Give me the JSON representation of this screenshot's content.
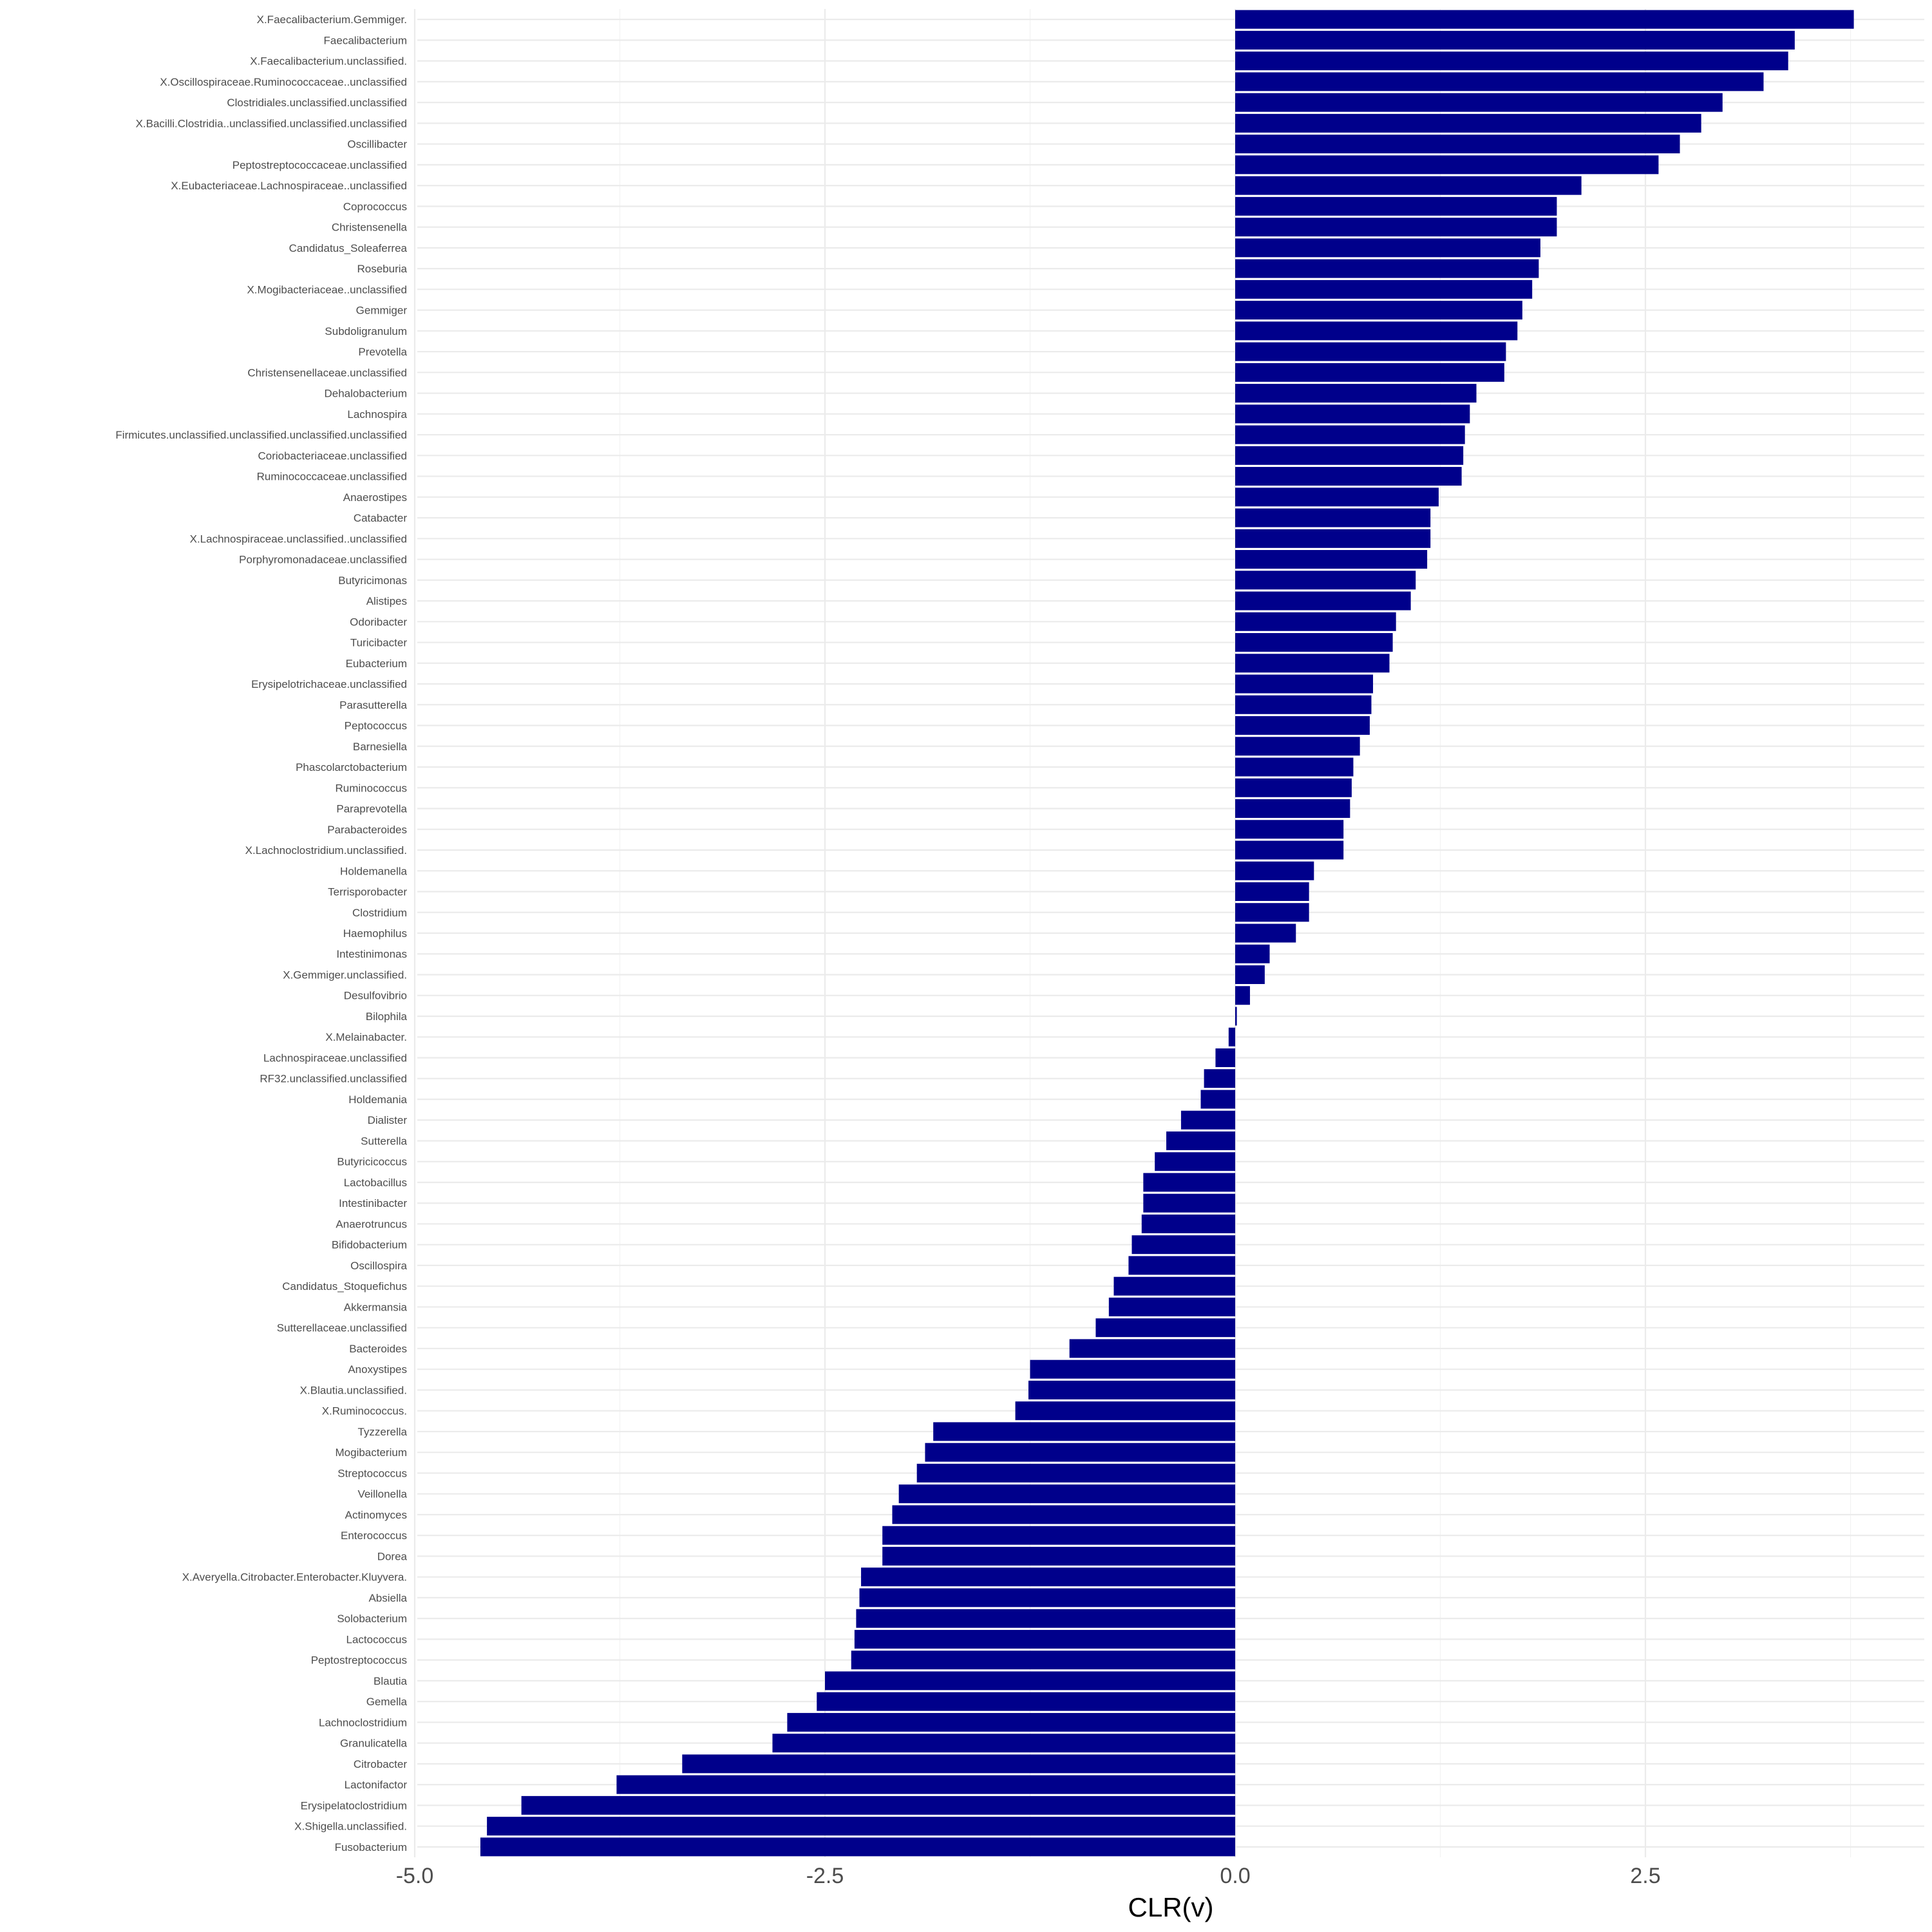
{
  "chart_data": {
    "type": "bar",
    "orientation": "horizontal",
    "xlabel": "CLR(v)",
    "ylabel": "",
    "title": "",
    "xlim": [
      -5.0,
      4.2
    ],
    "x_ticks": [
      -5.0,
      -2.5,
      0.0,
      2.5
    ],
    "x_tick_labels": [
      "-5.0",
      "-2.5",
      "0.0",
      "2.5"
    ],
    "grid": true,
    "legend": "none",
    "bar_color": "#00008B",
    "categories": [
      "X.Faecalibacterium.Gemmiger.",
      "Faecalibacterium",
      "X.Faecalibacterium.unclassified.",
      "X.Oscillospiraceae.Ruminococcaceae..unclassified",
      "Clostridiales.unclassified.unclassified",
      "X.Bacilli.Clostridia..unclassified.unclassified.unclassified",
      "Oscillibacter",
      "Peptostreptococcaceae.unclassified",
      "X.Eubacteriaceae.Lachnospiraceae..unclassified",
      "Coprococcus",
      "Christensenella",
      "Candidatus_Soleaferrea",
      "Roseburia",
      "X.Mogibacteriaceae..unclassified",
      "Gemmiger",
      "Subdoligranulum",
      "Prevotella",
      "Christensenellaceae.unclassified",
      "Dehalobacterium",
      "Lachnospira",
      "Firmicutes.unclassified.unclassified.unclassified.unclassified",
      "Coriobacteriaceae.unclassified",
      "Ruminococcaceae.unclassified",
      "Anaerostipes",
      "Catabacter",
      "X.Lachnospiraceae.unclassified..unclassified",
      "Porphyromonadaceae.unclassified",
      "Butyricimonas",
      "Alistipes",
      "Odoribacter",
      "Turicibacter",
      "Eubacterium",
      "Erysipelotrichaceae.unclassified",
      "Parasutterella",
      "Peptococcus",
      "Barnesiella",
      "Phascolarctobacterium",
      "Ruminococcus",
      "Paraprevotella",
      "Parabacteroides",
      "X.Lachnoclostridium.unclassified.",
      "Holdemanella",
      "Terrisporobacter",
      "Clostridium",
      "Haemophilus",
      "Intestinimonas",
      "X.Gemmiger.unclassified.",
      "Desulfovibrio",
      "Bilophila",
      "X.Melainabacter.",
      "Lachnospiraceae.unclassified",
      "RF32.unclassified.unclassified",
      "Holdemania",
      "Dialister",
      "Sutterella",
      "Butyricicoccus",
      "Lactobacillus",
      "Intestinibacter",
      "Anaerotruncus",
      "Bifidobacterium",
      "Oscillospira",
      "Candidatus_Stoquefichus",
      "Akkermansia",
      "Sutterellaceae.unclassified",
      "Bacteroides",
      "Anoxystipes",
      "X.Blautia.unclassified.",
      "X.Ruminococcus.",
      "Tyzzerella",
      "Mogibacterium",
      "Streptococcus",
      "Veillonella",
      "Actinomyces",
      "Enterococcus",
      "Dorea",
      "X.Averyella.Citrobacter.Enterobacter.Kluyvera.",
      "Absiella",
      "Solobacterium",
      "Lactococcus",
      "Peptostreptococcus",
      "Blautia",
      "Gemella",
      "Lachnoclostridium",
      "Granulicatella",
      "Citrobacter",
      "Lactonifactor",
      "Erysipelatoclostridium",
      "X.Shigella.unclassified.",
      "Fusobacterium"
    ],
    "values": [
      3.77,
      3.41,
      3.37,
      3.22,
      2.97,
      2.84,
      2.71,
      2.58,
      2.11,
      1.96,
      1.96,
      1.86,
      1.85,
      1.81,
      1.75,
      1.72,
      1.65,
      1.64,
      1.47,
      1.43,
      1.4,
      1.39,
      1.38,
      1.24,
      1.19,
      1.19,
      1.17,
      1.1,
      1.07,
      0.98,
      0.96,
      0.94,
      0.84,
      0.83,
      0.82,
      0.76,
      0.72,
      0.71,
      0.7,
      0.66,
      0.66,
      0.48,
      0.45,
      0.45,
      0.37,
      0.21,
      0.18,
      0.09,
      0.01,
      -0.04,
      -0.12,
      -0.19,
      -0.21,
      -0.33,
      -0.42,
      -0.49,
      -0.56,
      -0.56,
      -0.57,
      -0.63,
      -0.65,
      -0.74,
      -0.77,
      -0.85,
      -1.01,
      -1.25,
      -1.26,
      -1.34,
      -1.84,
      -1.89,
      -1.94,
      -2.05,
      -2.09,
      -2.15,
      -2.15,
      -2.28,
      -2.29,
      -2.31,
      -2.32,
      -2.34,
      -2.5,
      -2.55,
      -2.73,
      -2.82,
      -3.37,
      -3.77,
      -4.35,
      -4.56,
      -4.6
    ]
  }
}
